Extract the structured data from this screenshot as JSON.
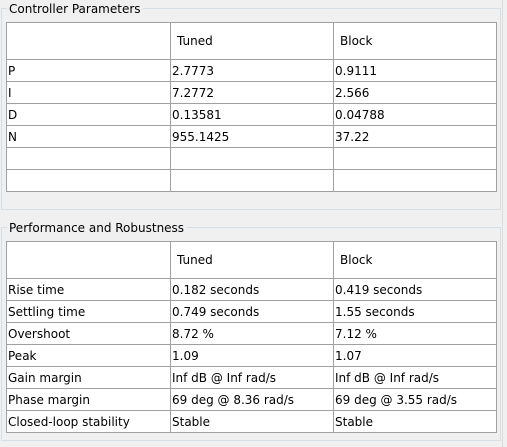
{
  "controller": {
    "title": "Controller Parameters",
    "columns": [
      "",
      "Tuned",
      "Block"
    ],
    "rows": [
      {
        "label": "P",
        "tuned": "2.7773",
        "block": "0.9111"
      },
      {
        "label": "I",
        "tuned": "7.2772",
        "block": "2.566"
      },
      {
        "label": "D",
        "tuned": "0.13581",
        "block": "0.04788"
      },
      {
        "label": "N",
        "tuned": "955.1425",
        "block": "37.22"
      },
      {
        "label": "",
        "tuned": "",
        "block": ""
      },
      {
        "label": "",
        "tuned": "",
        "block": ""
      }
    ]
  },
  "performance": {
    "title": "Performance and Robustness",
    "columns": [
      "",
      "Tuned",
      "Block"
    ],
    "rows": [
      {
        "label": "Rise time",
        "tuned": "0.182 seconds",
        "block": "0.419 seconds"
      },
      {
        "label": "Settling time",
        "tuned": "0.749 seconds",
        "block": "1.55 seconds"
      },
      {
        "label": "Overshoot",
        "tuned": "8.72 %",
        "block": "7.12 %"
      },
      {
        "label": "Peak",
        "tuned": "1.09",
        "block": "1.07"
      },
      {
        "label": "Gain margin",
        "tuned": "Inf dB @ Inf rad/s",
        "block": "Inf dB @ Inf rad/s"
      },
      {
        "label": "Phase margin",
        "tuned": "69 deg @ 8.36 rad/s",
        "block": "69 deg @ 3.55 rad/s"
      },
      {
        "label": "Closed-loop stability",
        "tuned": "Stable",
        "block": "Stable"
      }
    ]
  }
}
